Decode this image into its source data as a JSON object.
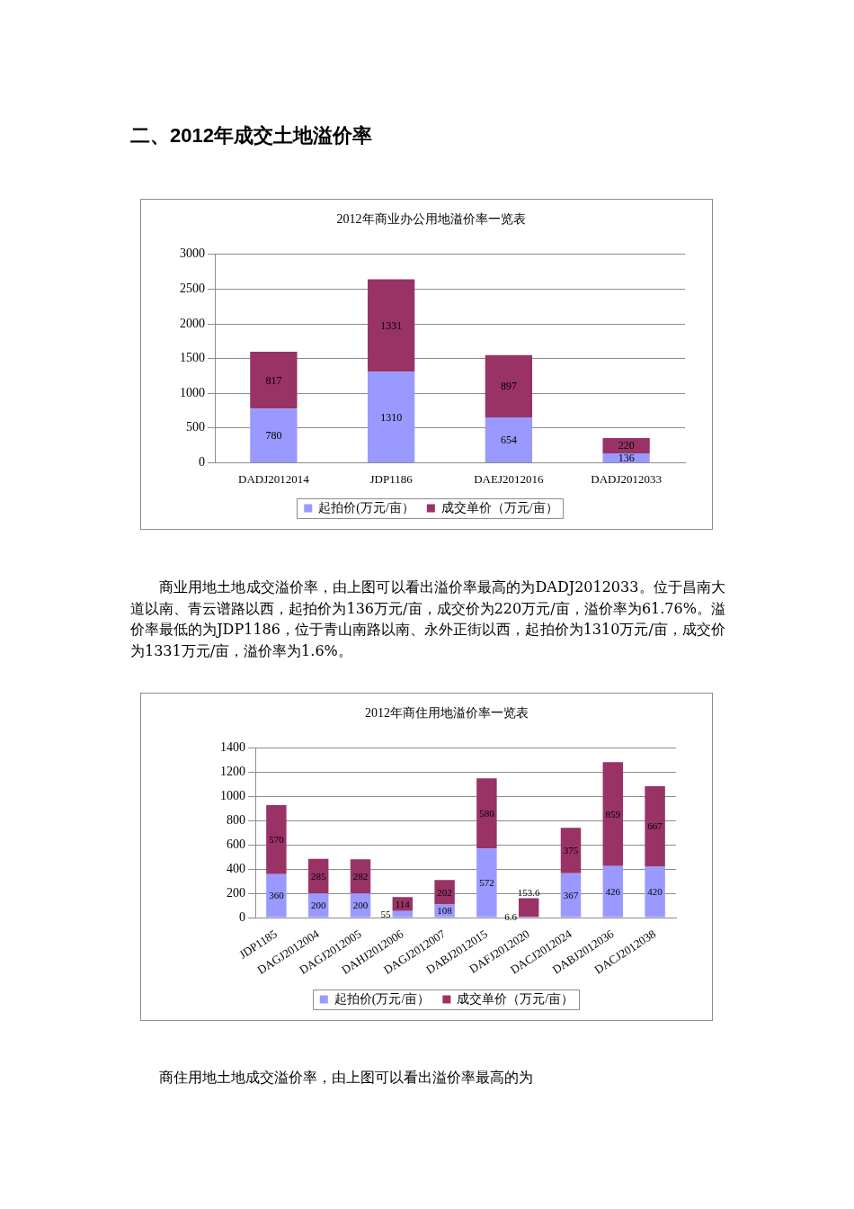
{
  "chart_data": [
    {
      "type": "bar",
      "title": "2012年商业办公用地溢价率一览表",
      "categories": [
        "DADJ2012014",
        "JDP1186",
        "DAEJ2012016",
        "DADJ2012033"
      ],
      "stacked": true,
      "series": [
        {
          "name": "起拍价(万元/亩）",
          "color": "#9999ff",
          "values": [
            780,
            1310,
            654,
            136
          ]
        },
        {
          "name": "成交单价（万元/亩）",
          "color": "#993366",
          "values": [
            817,
            1331,
            897,
            220
          ]
        }
      ],
      "ylim": [
        0,
        3000
      ],
      "yticks": [
        0,
        500,
        1000,
        1500,
        2000,
        2500,
        3000
      ],
      "grid": "y",
      "legend": "bottom",
      "data_labels": true,
      "annotations": [
        "二、2012年成交土地溢价率",
        "商业用地土地成交溢价率，由上图可以看出溢价率最高的为DADJ2012033。位于昌南大道以南、青云谱路以西，起拍价为136万元/亩，成交价为220万元/亩，溢价率为61.76%。溢价率最低的为JDP1186，位于青山南路以南、永外正街以西，起拍价为1310万元/亩，成交价为1331万元/亩，溢价率为1.6%。"
      ]
    },
    {
      "type": "bar",
      "title": "2012年商住用地溢价率一览表",
      "categories": [
        "JDP1185",
        "DAGJ2012004",
        "DAGJ2012005",
        "DAHJ2012006",
        "DAGJ2012007",
        "DABJ2012015",
        "DAFJ2012020",
        "DACJ2012024",
        "DABJ2012036",
        "DACJ2012038"
      ],
      "stacked": true,
      "series": [
        {
          "name": "起拍价(万元/亩）",
          "color": "#9999ff",
          "values": [
            360,
            200,
            200,
            55,
            108,
            572,
            6.6,
            367,
            426,
            420
          ]
        },
        {
          "name": "成交单价（万元/亩）",
          "color": "#993366",
          "values": [
            570,
            285,
            282,
            114,
            202,
            580,
            153.6,
            375,
            859,
            667
          ]
        }
      ],
      "ylim": [
        0,
        1400
      ],
      "yticks": [
        0,
        200,
        400,
        600,
        800,
        1000,
        1200,
        1400
      ],
      "grid": "y",
      "legend": "bottom",
      "data_labels": true,
      "annotations": [
        "商住用地土地成交溢价率，由上图可以看出溢价率最高的为"
      ]
    }
  ]
}
